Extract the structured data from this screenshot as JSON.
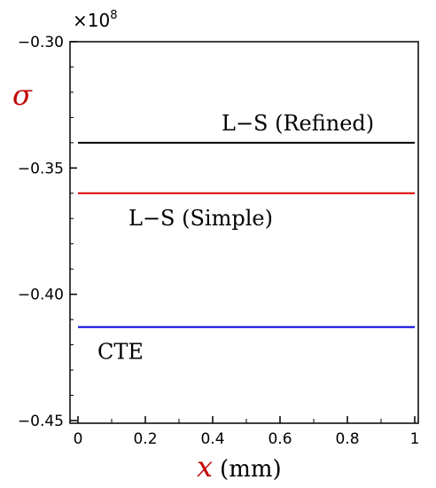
{
  "chart_data": {
    "type": "line",
    "title": "",
    "multiplier": {
      "base": "×10",
      "exponent": "8"
    },
    "ylabel": {
      "symbol": "σ",
      "color": "#c00000"
    },
    "xlabel": {
      "symbol": "x",
      "unit": "(mm)",
      "color": "#c00000"
    },
    "xlim": [
      0,
      1
    ],
    "ylim": [
      -0.45,
      -0.3
    ],
    "xticks": [
      "0",
      "0.2",
      "0.4",
      "0.6",
      "0.8",
      "1"
    ],
    "yticks": [
      "-0.30",
      "-0.35",
      "-0.40",
      "-0.45"
    ],
    "grid": false,
    "series": [
      {
        "name": "L−S (Refined)",
        "color": "#000000",
        "x": [
          0,
          1
        ],
        "y": [
          -0.34,
          -0.34
        ]
      },
      {
        "name": "L−S (Simple)",
        "color": "#e00000",
        "x": [
          0,
          1
        ],
        "y": [
          -0.36,
          -0.36
        ]
      },
      {
        "name": "CTE",
        "color": "#0000e0",
        "x": [
          0,
          1
        ],
        "y": [
          -0.413,
          -0.413
        ]
      }
    ]
  }
}
